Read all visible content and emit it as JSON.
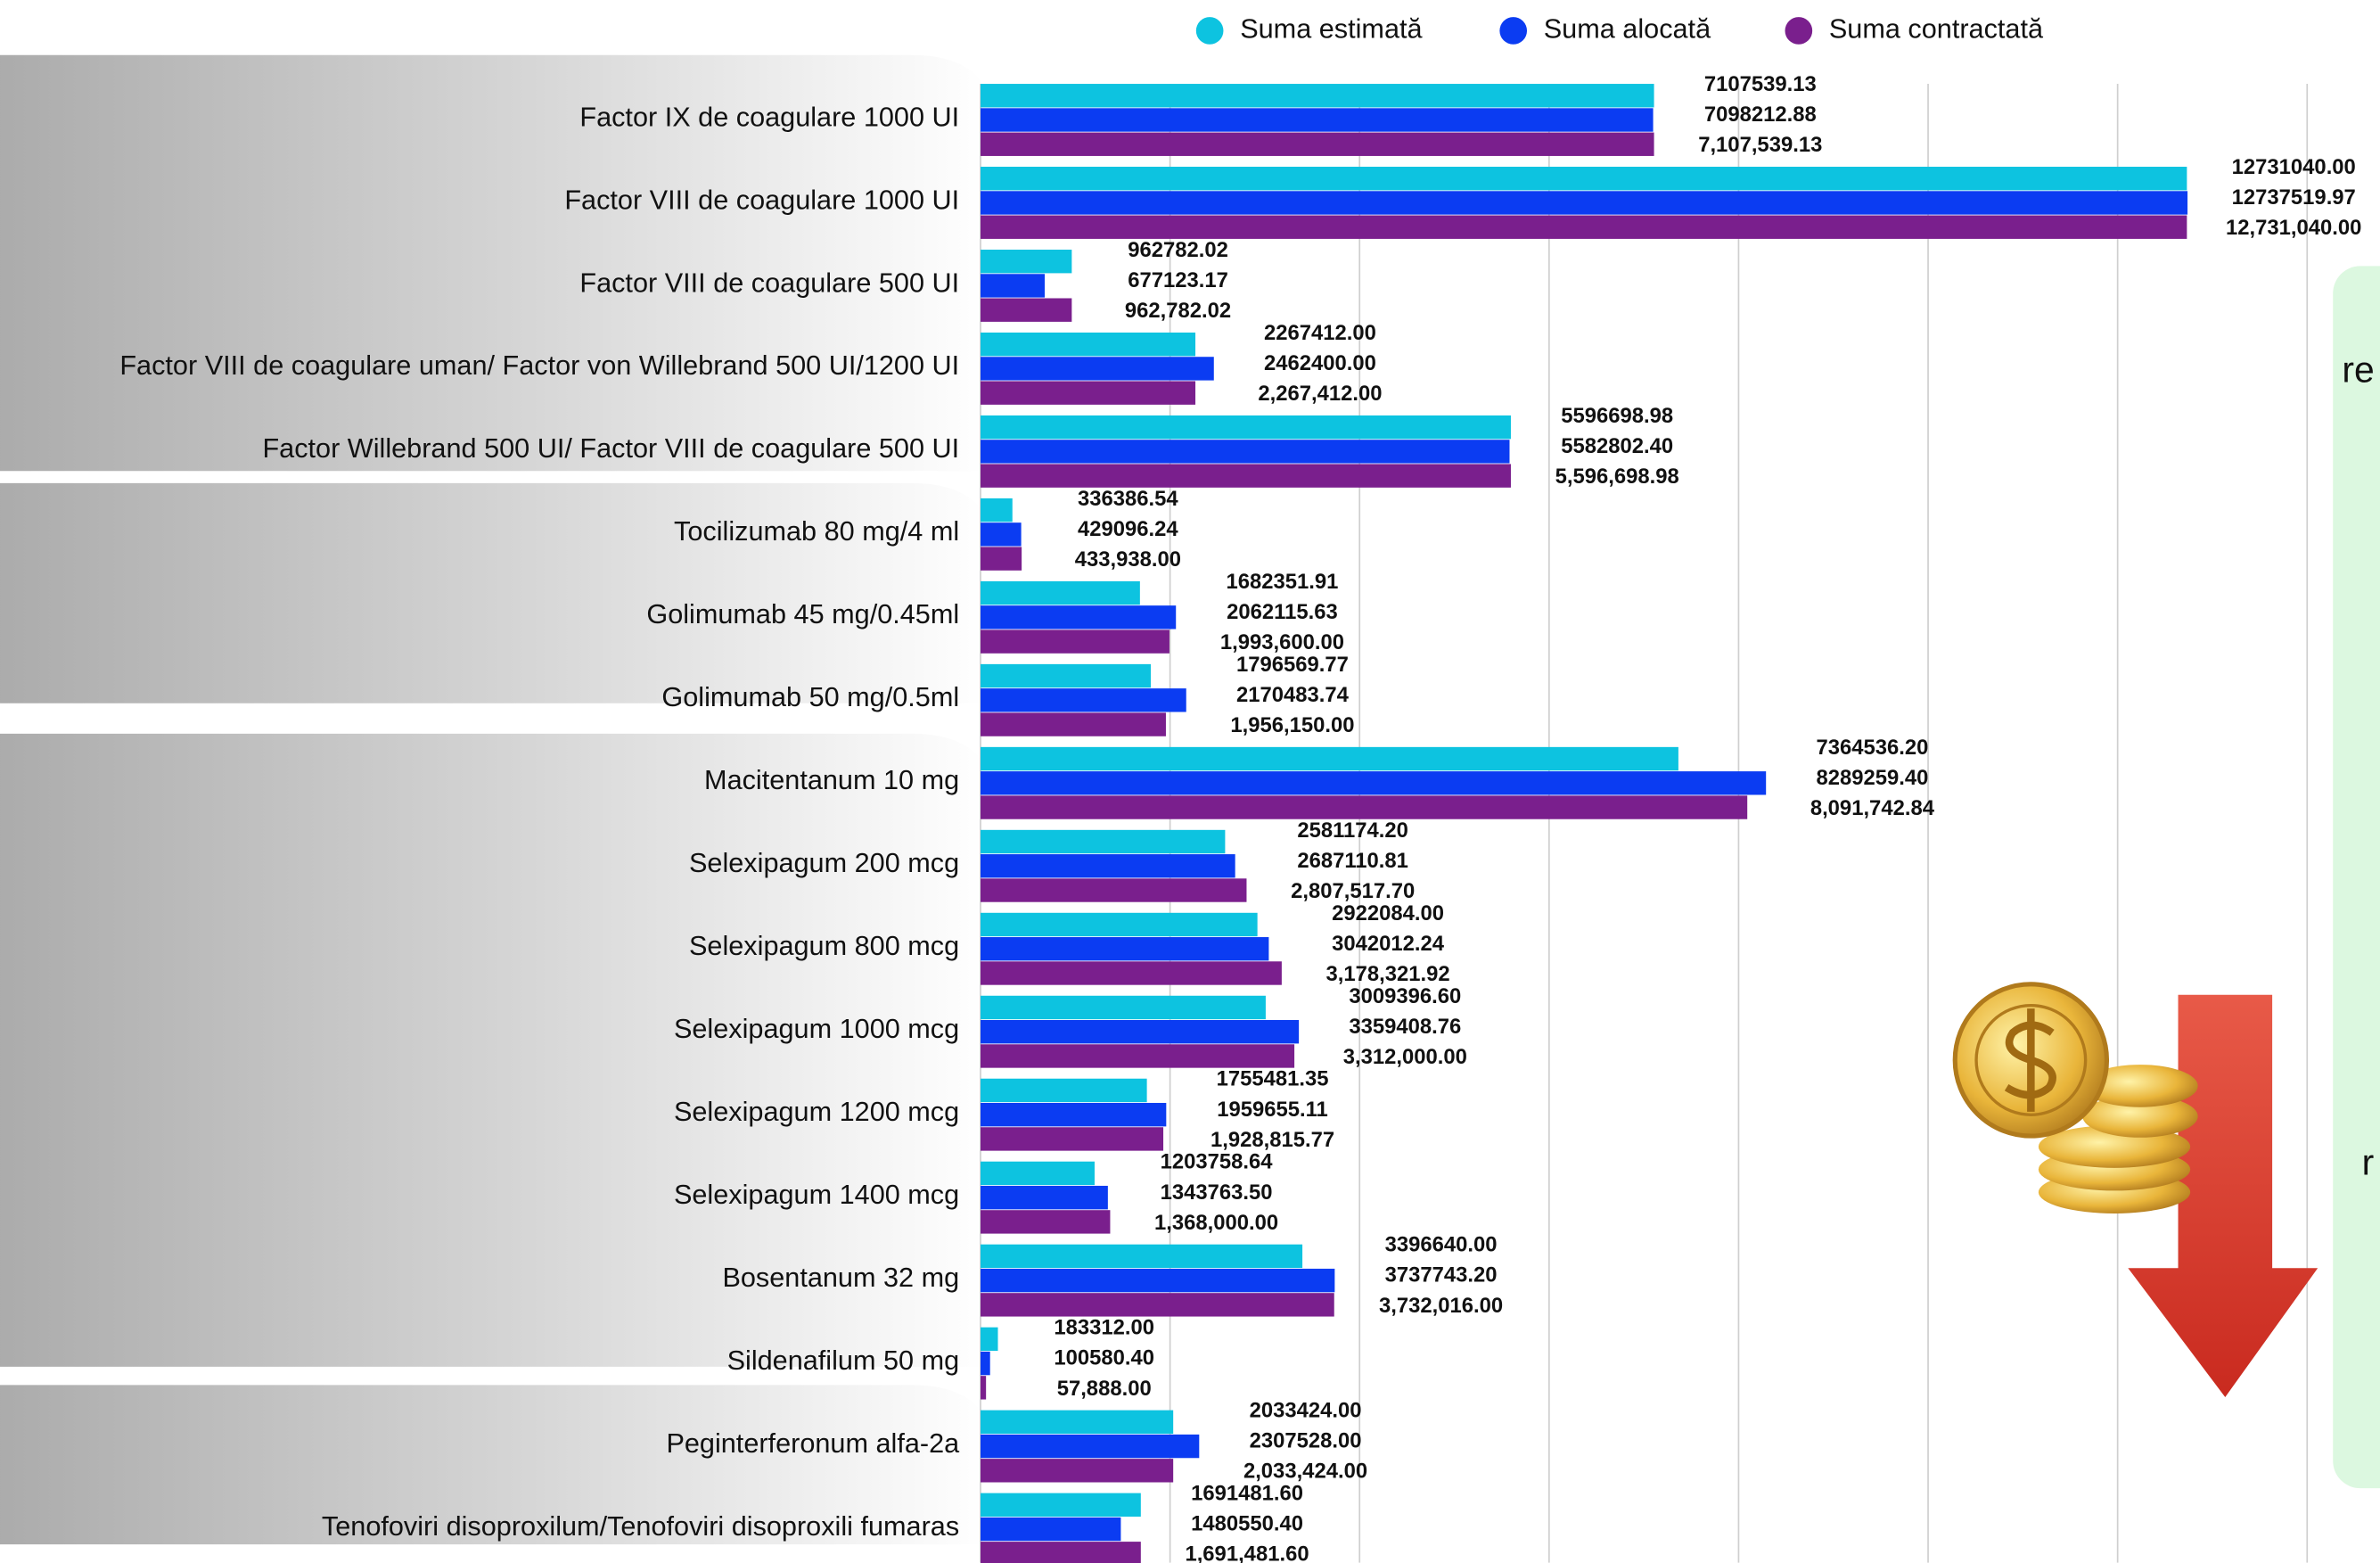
{
  "chart_data": {
    "type": "bar",
    "orientation": "horizontal",
    "categories": [
      "Factor IX de coagulare 1000 UI",
      "Factor VIII de coagulare 1000 UI",
      "Factor VIII de coagulare 500 UI",
      "Factor VIII de coagulare uman/ Factor von Willebrand 500 UI/1200 UI",
      "Factor Willebrand 500 UI/ Factor VIII de coagulare 500 UI",
      "Tocilizumab 80 mg/4 ml",
      "Golimumab 45 mg/0.45ml",
      "Golimumab 50 mg/0.5ml",
      "Macitentanum 10 mg",
      "Selexipagum 200 mcg",
      "Selexipagum 800 mcg",
      "Selexipagum 1000 mcg",
      "Selexipagum 1200 mcg",
      "Selexipagum 1400 mcg",
      "Bosentanum 32 mg",
      "Sildenafilum 50 mg",
      "Peginterferonum alfa-2a",
      "Tenofoviri disoproxilum/Tenofoviri disoproxili fumaras"
    ],
    "series": [
      {
        "name": "Suma estimată",
        "color": "#0dc3e0",
        "values": [
          7107539.13,
          12731040.0,
          962782.02,
          2267412.0,
          5596698.98,
          336386.54,
          1682351.91,
          1796569.77,
          7364536.2,
          2581174.2,
          2922084.0,
          3009396.6,
          1755481.35,
          1203758.64,
          3396640.0,
          183312.0,
          2033424.0,
          1691481.6
        ],
        "value_labels": [
          "7107539.13",
          "12731040.00",
          "962782.02",
          "2267412.00",
          "5596698.98",
          "336386.54",
          "1682351.91",
          "1796569.77",
          "7364536.20",
          "2581174.20",
          "2922084.00",
          "3009396.60",
          "1755481.35",
          "1203758.64",
          "3396640.00",
          "183312.00",
          "2033424.00",
          "1691481.60"
        ]
      },
      {
        "name": "Suma alocată",
        "color": "#0b3cf2",
        "values": [
          7098212.88,
          12737519.97,
          677123.17,
          2462400.0,
          5582802.4,
          429096.24,
          2062115.63,
          2170483.74,
          8289259.4,
          2687110.81,
          3042012.24,
          3359408.76,
          1959655.11,
          1343763.5,
          3737743.2,
          100580.4,
          2307528.0,
          1480550.4
        ],
        "value_labels": [
          "7098212.88",
          "12737519.97",
          "677123.17",
          "2462400.00",
          "5582802.40",
          "429096.24",
          "2062115.63",
          "2170483.74",
          "8289259.40",
          "2687110.81",
          "3042012.24",
          "3359408.76",
          "1959655.11",
          "1343763.50",
          "3737743.20",
          "100580.40",
          "2307528.00",
          "1480550.40"
        ]
      },
      {
        "name": "Suma contractată",
        "color": "#7a1f8d",
        "values": [
          7107539.13,
          12731040.0,
          962782.02,
          2267412.0,
          5596698.98,
          433938.0,
          1993600.0,
          1956150.0,
          8091742.84,
          2807517.7,
          3178321.92,
          3312000.0,
          1928815.77,
          1368000.0,
          3732016.0,
          57888.0,
          2033424.0,
          1691481.6
        ],
        "value_labels": [
          "7,107,539.13",
          "12,731,040.00",
          "962,782.02",
          "2,267,412.00",
          "5,596,698.98",
          "433,938.00",
          "1,993,600.00",
          "1,956,150.00",
          "8,091,742.84",
          "2,807,517.70",
          "3,178,321.92",
          "3,312,000.00",
          "1,928,815.77",
          "1,368,000.00",
          "3,732,016.00",
          "57,888.00",
          "2,033,424.00",
          "1,691,481.60"
        ]
      }
    ],
    "xlim": [
      0,
      14000000
    ],
    "xticks": [
      0,
      2000000,
      4000000,
      6000000,
      8000000,
      10000000,
      12000000,
      14000000
    ],
    "grid": true,
    "legend": "top"
  },
  "side_panel": {
    "texts": [
      "re",
      "r"
    ]
  }
}
